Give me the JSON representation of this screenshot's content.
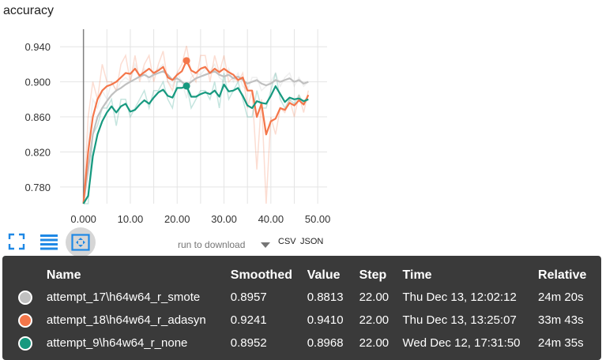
{
  "card": {
    "title": "accuracy"
  },
  "colors": {
    "run_smote": "#c0c0c0",
    "run_adasyn": "#f4764a",
    "run_none": "#16997f",
    "axis": "#808080",
    "grid": "#e4e4e4",
    "tooltip_bg": "#3a3a3a"
  },
  "icons": {
    "expand": "fullscreen-corners-icon",
    "lines": "list-lines-icon",
    "fit": "fit-domain-icon",
    "dropdown": "triangle-down-icon"
  },
  "controls": {
    "download_placeholder": "run to download",
    "csv_label": "CSV",
    "json_label": "JSON"
  },
  "tooltip": {
    "headers": {
      "name": "Name",
      "smoothed": "Smoothed",
      "value": "Value",
      "step": "Step",
      "time": "Time",
      "relative": "Relative"
    },
    "rows": [
      {
        "name": "attempt_17\\h64w64_r_smote",
        "smoothed": "0.8957",
        "value": "0.8813",
        "step": "22.00",
        "time": "Thu Dec 13, 12:02:12",
        "relative": "24m 20s",
        "color": "#c0c0c0"
      },
      {
        "name": "attempt_18\\h64w64_r_adasyn",
        "smoothed": "0.9241",
        "value": "0.9410",
        "step": "22.00",
        "time": "Thu Dec 13, 13:25:07",
        "relative": "33m 43s",
        "color": "#f4764a"
      },
      {
        "name": "attempt_9\\h64w64_r_none",
        "smoothed": "0.8952",
        "value": "0.8968",
        "step": "22.00",
        "time": "Wed Dec 12, 17:31:50",
        "relative": "24m 35s",
        "color": "#16997f"
      }
    ]
  },
  "chart_data": {
    "type": "line",
    "title": "accuracy",
    "xlabel": "",
    "ylabel": "",
    "xlim": [
      -5,
      52
    ],
    "ylim": [
      0.761,
      0.96
    ],
    "xticks": [
      "0.000",
      "10.00",
      "20.00",
      "30.00",
      "40.00",
      "50.00"
    ],
    "xtick_values": [
      0,
      10,
      20,
      30,
      40,
      50
    ],
    "yticks": [
      "0.940",
      "0.900",
      "0.860",
      "0.820",
      "0.780"
    ],
    "ytick_values": [
      0.94,
      0.9,
      0.86,
      0.82,
      0.78
    ],
    "grid": true,
    "highlight_step": 22,
    "series": [
      {
        "name": "attempt_17\\h64w64_r_smote",
        "color": "#c0c0c0",
        "x": [
          0,
          1,
          2,
          3,
          4,
          5,
          6,
          7,
          8,
          9,
          10,
          11,
          12,
          13,
          14,
          15,
          16,
          17,
          18,
          19,
          20,
          21,
          22,
          23,
          24,
          25,
          26,
          27,
          28,
          29,
          30,
          31,
          32,
          33,
          34,
          35,
          36,
          37,
          38,
          39,
          40,
          41,
          42,
          43,
          44,
          45,
          46,
          47,
          48
        ],
        "smoothed": [
          0.75,
          0.8,
          0.84,
          0.86,
          0.87,
          0.878,
          0.885,
          0.89,
          0.893,
          0.897,
          0.9,
          0.903,
          0.906,
          0.908,
          0.905,
          0.908,
          0.91,
          0.912,
          0.908,
          0.902,
          0.904,
          0.9,
          0.8957,
          0.9,
          0.904,
          0.906,
          0.908,
          0.91,
          0.912,
          0.908,
          0.906,
          0.908,
          0.904,
          0.906,
          0.902,
          0.898,
          0.9,
          0.902,
          0.898,
          0.896,
          0.898,
          0.902,
          0.9,
          0.902,
          0.904,
          0.9,
          0.902,
          0.898,
          0.9
        ],
        "raw": [
          0.72,
          0.83,
          0.88,
          0.87,
          0.89,
          0.88,
          0.9,
          0.89,
          0.9,
          0.905,
          0.9,
          0.92,
          0.905,
          0.915,
          0.9,
          0.91,
          0.915,
          0.92,
          0.9,
          0.895,
          0.91,
          0.9,
          0.8813,
          0.905,
          0.91,
          0.908,
          0.915,
          0.912,
          0.92,
          0.905,
          0.9,
          0.915,
          0.9,
          0.91,
          0.895,
          0.89,
          0.905,
          0.905,
          0.89,
          0.895,
          0.9,
          0.91,
          0.895,
          0.905,
          0.91,
          0.895,
          0.905,
          0.895,
          0.9
        ]
      },
      {
        "name": "attempt_18\\h64w64_r_adasyn",
        "color": "#f4764a",
        "x": [
          0,
          1,
          2,
          3,
          4,
          5,
          6,
          7,
          8,
          9,
          10,
          11,
          12,
          13,
          14,
          15,
          16,
          17,
          18,
          19,
          20,
          21,
          22,
          23,
          24,
          25,
          26,
          27,
          28,
          29,
          30,
          31,
          32,
          33,
          34,
          35,
          36,
          37,
          38,
          39,
          40,
          41,
          42,
          43,
          44,
          45,
          46,
          47,
          48
        ],
        "smoothed": [
          0.75,
          0.82,
          0.86,
          0.88,
          0.89,
          0.895,
          0.897,
          0.9,
          0.905,
          0.91,
          0.909,
          0.915,
          0.907,
          0.911,
          0.915,
          0.91,
          0.913,
          0.917,
          0.905,
          0.902,
          0.908,
          0.912,
          0.9241,
          0.913,
          0.91,
          0.915,
          0.917,
          0.91,
          0.915,
          0.911,
          0.915,
          0.911,
          0.908,
          0.902,
          0.905,
          0.89,
          0.89,
          0.86,
          0.875,
          0.84,
          0.855,
          0.858,
          0.87,
          0.868,
          0.876,
          0.873,
          0.879,
          0.874,
          0.885
        ],
        "raw": [
          0.72,
          0.86,
          0.9,
          0.88,
          0.92,
          0.9,
          0.9,
          0.89,
          0.92,
          0.93,
          0.9,
          0.93,
          0.9,
          0.92,
          0.93,
          0.9,
          0.92,
          0.935,
          0.9,
          0.89,
          0.91,
          0.92,
          0.941,
          0.91,
          0.9,
          0.93,
          0.93,
          0.9,
          0.93,
          0.91,
          0.93,
          0.9,
          0.905,
          0.9,
          0.91,
          0.87,
          0.89,
          0.8,
          0.88,
          0.76,
          0.86,
          0.84,
          0.87,
          0.865,
          0.88,
          0.86,
          0.885,
          0.865,
          0.89
        ]
      },
      {
        "name": "attempt_9\\h64w64_r_none",
        "color": "#16997f",
        "x": [
          0,
          1,
          2,
          3,
          4,
          5,
          6,
          7,
          8,
          9,
          10,
          11,
          12,
          13,
          14,
          15,
          16,
          17,
          18,
          19,
          20,
          21,
          22,
          23,
          24,
          25,
          26,
          27,
          28,
          29,
          30,
          31,
          32,
          33,
          34,
          35,
          36,
          37,
          38,
          39,
          40,
          41,
          42,
          43,
          44,
          45,
          46,
          47,
          48
        ],
        "smoothed": [
          0.74,
          0.77,
          0.815,
          0.84,
          0.855,
          0.865,
          0.872,
          0.865,
          0.872,
          0.875,
          0.866,
          0.868,
          0.874,
          0.879,
          0.875,
          0.882,
          0.888,
          0.891,
          0.884,
          0.882,
          0.893,
          0.893,
          0.8952,
          0.883,
          0.883,
          0.886,
          0.888,
          0.886,
          0.89,
          0.883,
          0.897,
          0.889,
          0.89,
          0.893,
          0.884,
          0.873,
          0.87,
          0.878,
          0.876,
          0.875,
          0.884,
          0.895,
          0.886,
          0.877,
          0.882,
          0.88,
          0.881,
          0.878,
          0.88
        ],
        "raw": [
          0.72,
          0.76,
          0.84,
          0.85,
          0.87,
          0.87,
          0.88,
          0.85,
          0.88,
          0.88,
          0.86,
          0.87,
          0.88,
          0.89,
          0.87,
          0.89,
          0.89,
          0.9,
          0.88,
          0.87,
          0.9,
          0.9,
          0.8968,
          0.87,
          0.88,
          0.89,
          0.89,
          0.88,
          0.9,
          0.87,
          0.91,
          0.88,
          0.89,
          0.9,
          0.88,
          0.86,
          0.86,
          0.89,
          0.87,
          0.87,
          0.89,
          0.91,
          0.88,
          0.87,
          0.88,
          0.875,
          0.885,
          0.875,
          0.88
        ]
      }
    ]
  }
}
